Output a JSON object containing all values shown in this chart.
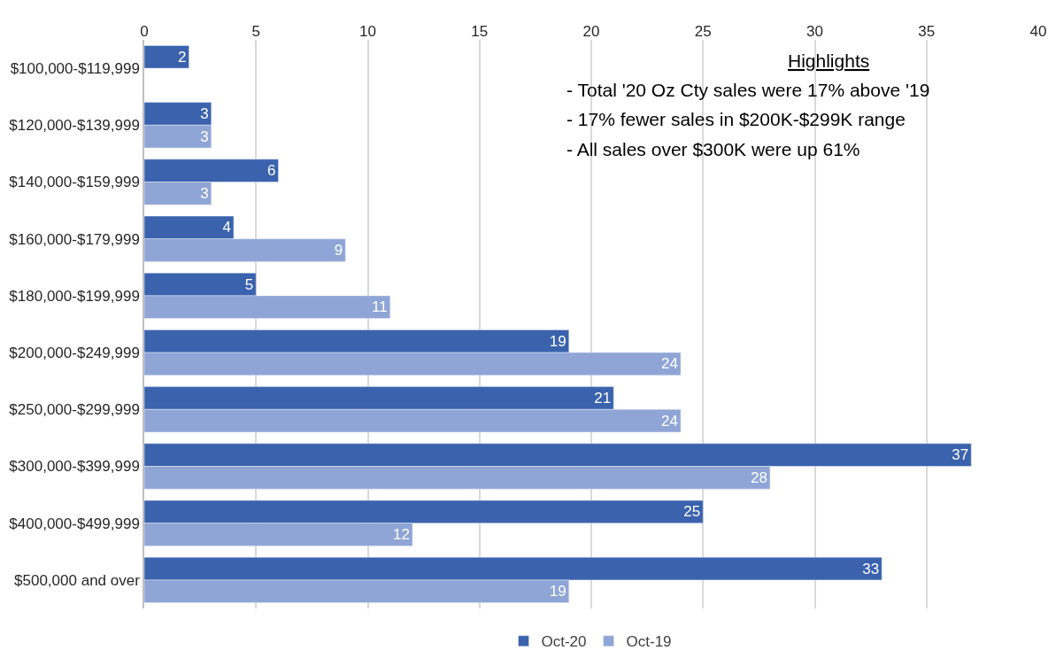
{
  "chart_data": {
    "type": "bar",
    "orientation": "horizontal",
    "categories": [
      "$100,000-$119,999",
      "$120,000-$139,999",
      "$140,000-$159,999",
      "$160,000-$179,999",
      "$180,000-$199,999",
      "$200,000-$249,999",
      "$250,000-$299,999",
      "$300,000-$399,999",
      "$400,000-$499,999",
      "$500,000 and over"
    ],
    "series": [
      {
        "name": "Oct-20",
        "color": "#3a62ad",
        "values": [
          2,
          3,
          6,
          4,
          5,
          19,
          21,
          37,
          25,
          33
        ]
      },
      {
        "name": "Oct-19",
        "color": "#8fa5d6",
        "values": [
          null,
          3,
          3,
          9,
          11,
          24,
          24,
          28,
          12,
          19
        ]
      }
    ],
    "xlim": [
      0,
      40
    ],
    "xticks": [
      0,
      5,
      10,
      15,
      20,
      25,
      30,
      35,
      40
    ],
    "grid": "x",
    "legend": "bottom",
    "data_labels": true,
    "annotations": [
      "Highlights",
      "- Total '20 Oz Cty sales were 17% above '19",
      "- 17% fewer sales in $200K-$299K range",
      "- All sales over $300K were up 61%"
    ]
  }
}
